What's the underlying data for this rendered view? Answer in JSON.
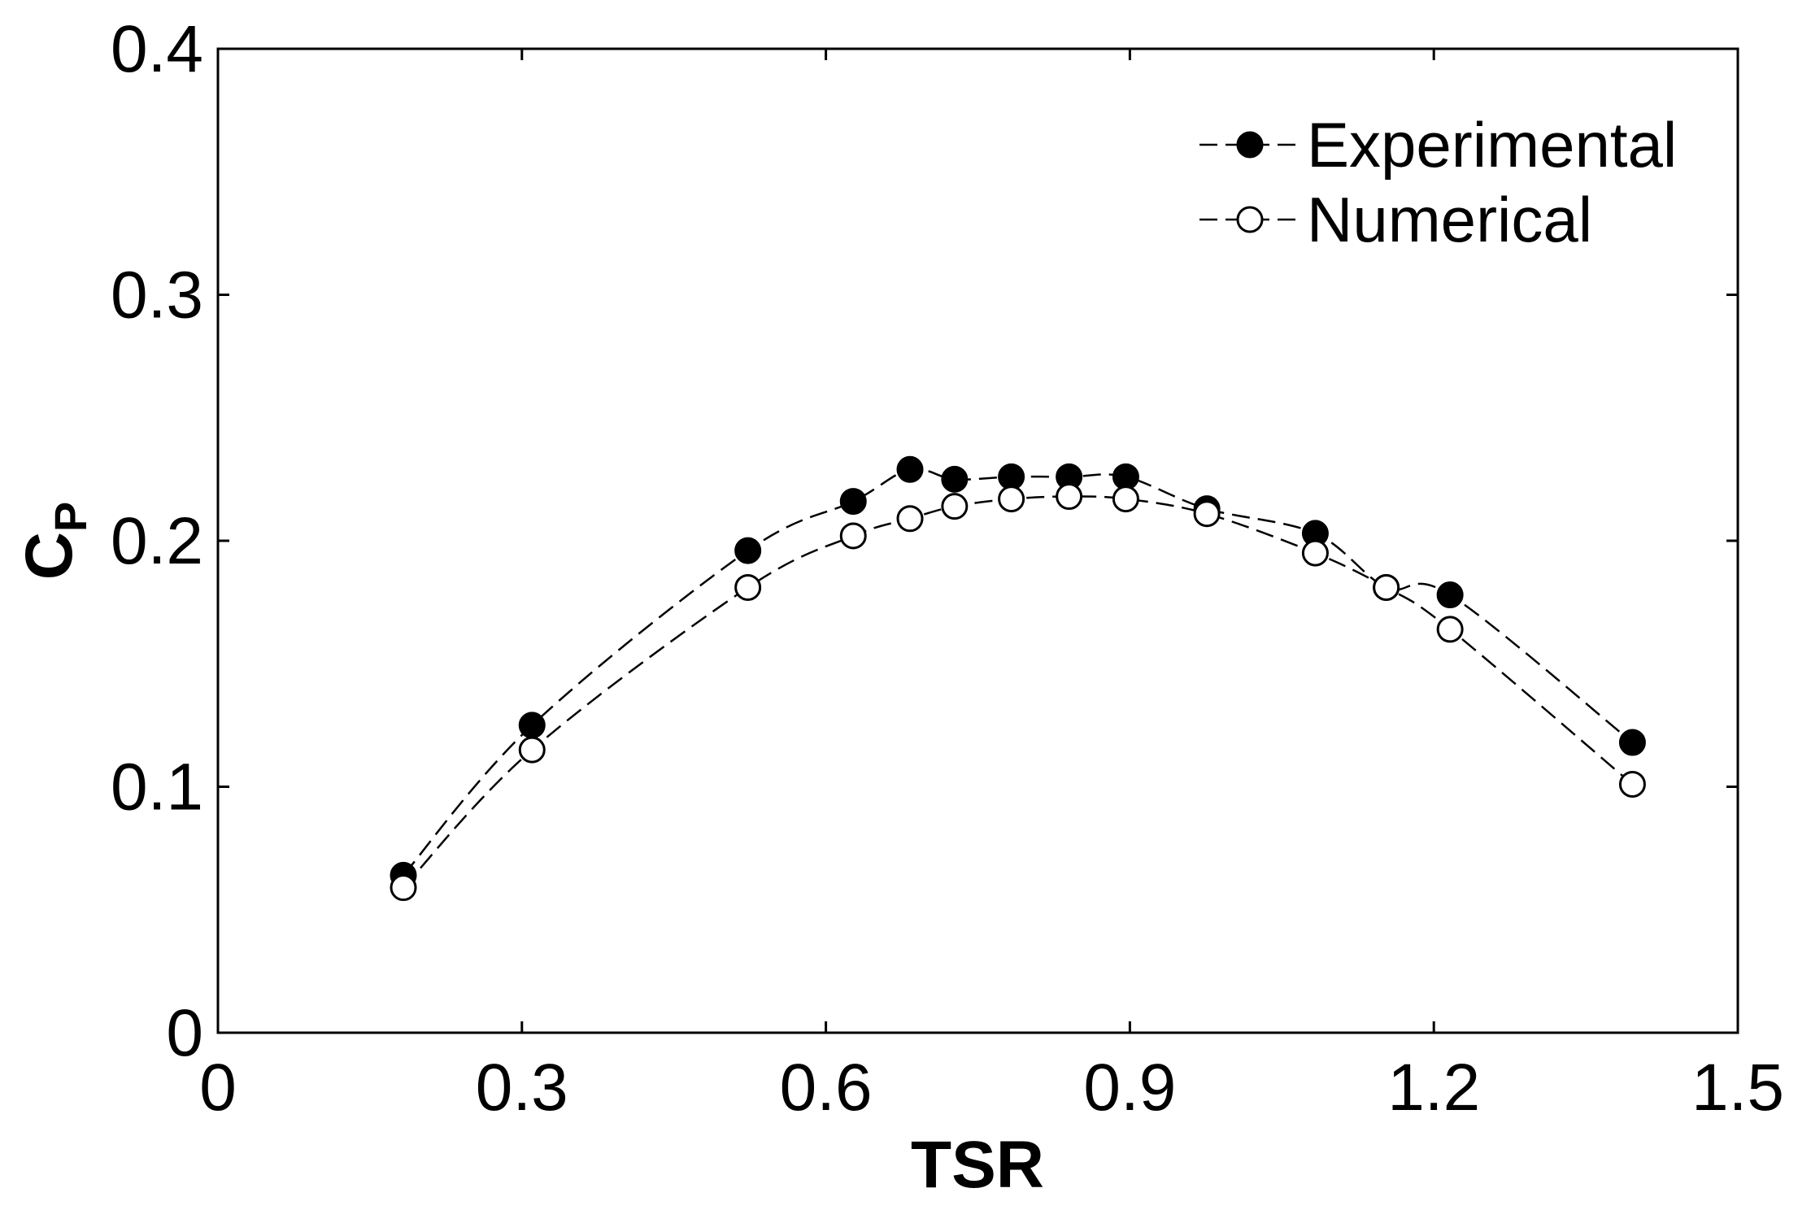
{
  "chart_data": {
    "type": "scatter",
    "xlabel": "TSR",
    "ylabel_main": "C",
    "ylabel_sub": "P",
    "xlim": [
      0,
      1.5
    ],
    "ylim": [
      0,
      0.4
    ],
    "xticks": [
      0,
      0.3,
      0.6,
      0.9,
      1.2,
      1.5
    ],
    "xtick_labels": [
      "0",
      "0.3",
      "0.6",
      "0.9",
      "1.2",
      "1.5"
    ],
    "yticks": [
      0,
      0.1,
      0.2,
      0.3,
      0.4
    ],
    "ytick_labels": [
      "0",
      "0.1",
      "0.2",
      "0.3",
      "0.4"
    ],
    "grid": false,
    "legend_position": "top-right",
    "series": [
      {
        "name": "Experimental",
        "marker": "filled-circle",
        "line": "dashed",
        "color": "#000000",
        "x": [
          0.183,
          0.31,
          0.523,
          0.627,
          0.683,
          0.727,
          0.783,
          0.84,
          0.896,
          0.976,
          1.083,
          1.153,
          1.216,
          1.396
        ],
        "y": [
          0.064,
          0.125,
          0.196,
          0.216,
          0.229,
          0.225,
          0.226,
          0.226,
          0.226,
          0.213,
          0.203,
          0.181,
          0.178,
          0.118
        ]
      },
      {
        "name": "Numerical",
        "marker": "open-circle",
        "line": "dashed",
        "color": "#000000",
        "x": [
          0.183,
          0.31,
          0.523,
          0.627,
          0.683,
          0.727,
          0.783,
          0.84,
          0.896,
          0.976,
          1.083,
          1.153,
          1.216,
          1.396
        ],
        "y": [
          0.059,
          0.115,
          0.181,
          0.202,
          0.209,
          0.214,
          0.217,
          0.218,
          0.217,
          0.211,
          0.195,
          0.181,
          0.164,
          0.101
        ]
      }
    ]
  }
}
